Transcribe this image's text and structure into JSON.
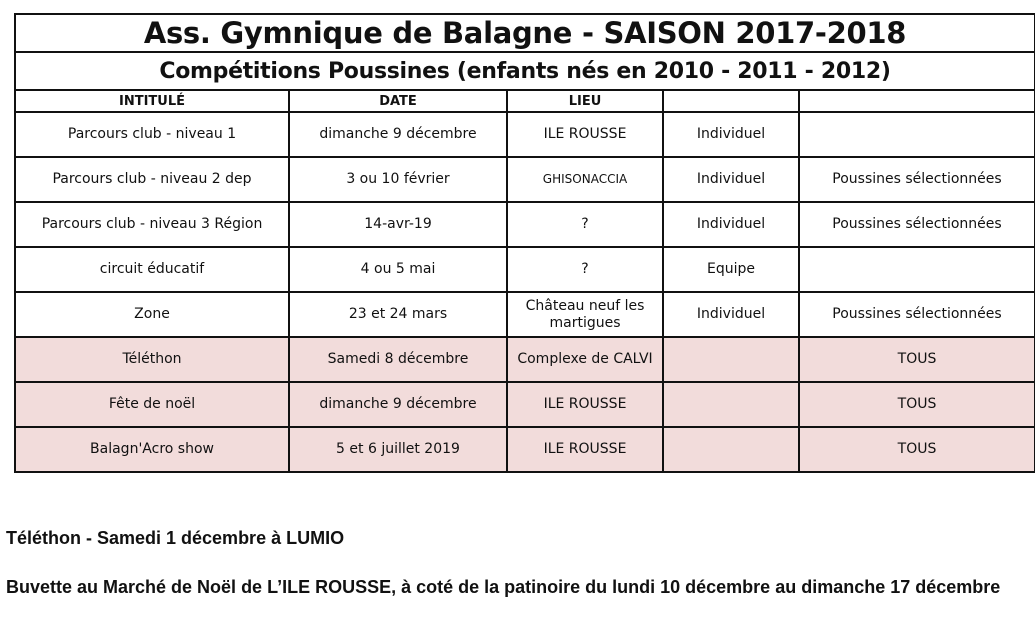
{
  "title": "Ass. Gymnique de Balagne - SAISON 2017-2018",
  "subtitle": "Compétitions Poussines (enfants nés en 2010 - 2011 - 2012)",
  "columns": [
    "INTITULÉ",
    "DATE",
    "LIEU",
    "",
    ""
  ],
  "rows": [
    {
      "intitule": "Parcours club - niveau 1",
      "date": "dimanche 9 décembre",
      "lieu": "ILE ROUSSE",
      "type": "Individuel",
      "participants": "",
      "highlight": false
    },
    {
      "intitule": "Parcours club - niveau 2 dep",
      "date": "3 ou 10 février",
      "lieu": "GHISONACCIA",
      "type": "Individuel",
      "participants": "Poussines sélectionnées",
      "highlight": false
    },
    {
      "intitule": "Parcours club - niveau 3 Région",
      "date": "14-avr-19",
      "lieu": "?",
      "type": "Individuel",
      "participants": "Poussines sélectionnées",
      "highlight": false
    },
    {
      "intitule": "circuit éducatif",
      "date": "4 ou 5 mai",
      "lieu": "?",
      "type": "Equipe",
      "participants": "",
      "highlight": false
    },
    {
      "intitule": "Zone",
      "date": "23 et 24 mars",
      "lieu": "Château neuf les martigues",
      "type": "Individuel",
      "participants": "Poussines sélectionnées",
      "highlight": false
    },
    {
      "intitule": "Téléthon",
      "date": "Samedi 8 décembre",
      "lieu": "Complexe de CALVI",
      "type": "",
      "participants": "TOUS",
      "highlight": true
    },
    {
      "intitule": "Fête de noël",
      "date": "dimanche 9 décembre",
      "lieu": "ILE ROUSSE",
      "type": "",
      "participants": "TOUS",
      "highlight": true
    },
    {
      "intitule": "Balagn'Acro show",
      "date": "5 et 6 juillet 2019",
      "lieu": "ILE ROUSSE",
      "type": "",
      "participants": "TOUS",
      "highlight": true
    }
  ],
  "notes": [
    "Téléthon  - Samedi 1 décembre à LUMIO",
    "Buvette au Marché de Noël de L’ILE ROUSSE, à coté de la patinoire du lundi 10 décembre au dimanche 17 décembre"
  ],
  "colors": {
    "highlight_row": "#f2dcdb",
    "border": "#111111"
  }
}
